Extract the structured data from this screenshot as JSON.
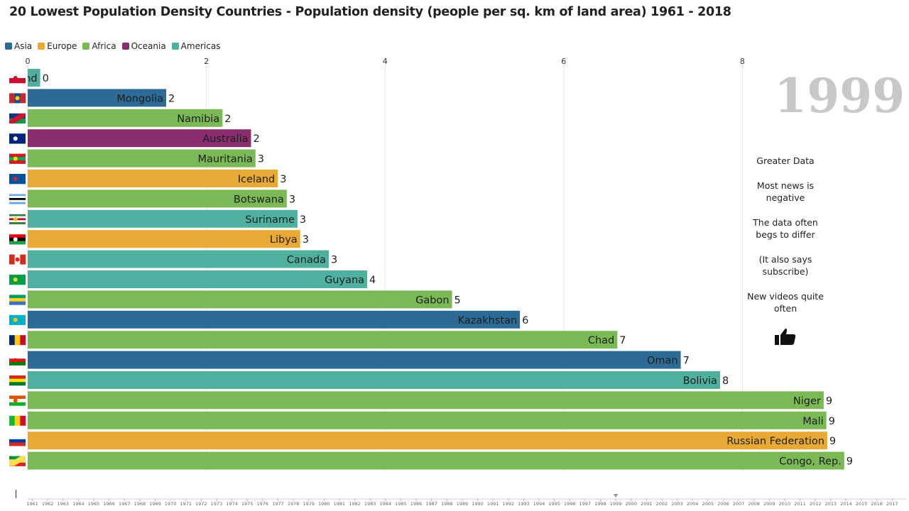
{
  "title": "20 Lowest Population Density Countries - Population density (people per sq. km of land area) 1961 - 2018",
  "year": "1999",
  "legend": [
    {
      "name": "Asia",
      "color": "#2c6b95"
    },
    {
      "name": "Europe",
      "color": "#e8aa34"
    },
    {
      "name": "Africa",
      "color": "#7ab955"
    },
    {
      "name": "Oceania",
      "color": "#8a2d6e"
    },
    {
      "name": "Americas",
      "color": "#4fb0a0"
    }
  ],
  "side_notes": [
    "Greater Data",
    "Most news is negative",
    "The data often begs to differ",
    "(It also says subscribe)",
    "New videos quite often"
  ],
  "timeline_years": [
    "1961",
    "1962",
    "1963",
    "1964",
    "1965",
    "1966",
    "1967",
    "1968",
    "1969",
    "1970",
    "1971",
    "1972",
    "1973",
    "1974",
    "1975",
    "1976",
    "1977",
    "1978",
    "1979",
    "1980",
    "1981",
    "1982",
    "1983",
    "1984",
    "1985",
    "1986",
    "1987",
    "1988",
    "1989",
    "1990",
    "1991",
    "1992",
    "1993",
    "1994",
    "1995",
    "1996",
    "1997",
    "1998",
    "1999",
    "2000",
    "2001",
    "2002",
    "2003",
    "2004",
    "2005",
    "2006",
    "2007",
    "2008",
    "2009",
    "2010",
    "2011",
    "2012",
    "2013",
    "2014",
    "2015",
    "2016",
    "2017"
  ],
  "chart_data": {
    "type": "bar",
    "orientation": "horizontal",
    "title": "20 Lowest Population Density Countries - Population density (people per sq. km of land area) 1961 - 2018",
    "xlim": [
      0,
      9.5
    ],
    "xticks": [
      0,
      2,
      4,
      6,
      8
    ],
    "grid": true,
    "legend_position": "top-left",
    "bars": [
      {
        "label": "Greenland",
        "value": 0.14,
        "value_label": "0",
        "region": "Americas"
      },
      {
        "label": "Mongolia",
        "value": 1.55,
        "value_label": "2",
        "region": "Asia"
      },
      {
        "label": "Namibia",
        "value": 2.18,
        "value_label": "2",
        "region": "Africa"
      },
      {
        "label": "Australia",
        "value": 2.5,
        "value_label": "2",
        "region": "Oceania"
      },
      {
        "label": "Mauritania",
        "value": 2.55,
        "value_label": "3",
        "region": "Africa"
      },
      {
        "label": "Iceland",
        "value": 2.8,
        "value_label": "3",
        "region": "Europe"
      },
      {
        "label": "Botswana",
        "value": 2.9,
        "value_label": "3",
        "region": "Africa"
      },
      {
        "label": "Suriname",
        "value": 3.02,
        "value_label": "3",
        "region": "Americas"
      },
      {
        "label": "Libya",
        "value": 3.05,
        "value_label": "3",
        "region": "Europe"
      },
      {
        "label": "Canada",
        "value": 3.37,
        "value_label": "3",
        "region": "Americas"
      },
      {
        "label": "Guyana",
        "value": 3.8,
        "value_label": "4",
        "region": "Americas"
      },
      {
        "label": "Gabon",
        "value": 4.75,
        "value_label": "5",
        "region": "Africa"
      },
      {
        "label": "Kazakhstan",
        "value": 5.51,
        "value_label": "6",
        "region": "Asia"
      },
      {
        "label": "Chad",
        "value": 6.6,
        "value_label": "7",
        "region": "Africa"
      },
      {
        "label": "Oman",
        "value": 7.31,
        "value_label": "7",
        "region": "Asia"
      },
      {
        "label": "Bolivia",
        "value": 7.75,
        "value_label": "8",
        "region": "Americas"
      },
      {
        "label": "Niger",
        "value": 8.91,
        "value_label": "9",
        "region": "Africa"
      },
      {
        "label": "Mali",
        "value": 8.94,
        "value_label": "9",
        "region": "Africa"
      },
      {
        "label": "Russian Federation",
        "value": 8.95,
        "value_label": "9",
        "region": "Europe"
      },
      {
        "label": "Congo, Rep.",
        "value": 9.14,
        "value_label": "9",
        "region": "Africa"
      }
    ]
  },
  "flags": [
    {
      "icon": "greenland-flag-icon",
      "stripes": [
        "#ffffff",
        "#c8102e"
      ],
      "orient": "h",
      "emblem": "#c8102e"
    },
    {
      "icon": "mongolia-flag-icon",
      "stripes": [
        "#c4272f",
        "#015197",
        "#c4272f"
      ],
      "orient": "v",
      "emblem": "#f9cf02"
    },
    {
      "icon": "namibia-flag-icon",
      "stripes": [
        "#003580",
        "#009a44"
      ],
      "orient": "diag",
      "emblem": "#d21034"
    },
    {
      "icon": "australia-flag-icon",
      "stripes": [
        "#00247d"
      ],
      "orient": "h",
      "emblem": "#ffffff"
    },
    {
      "icon": "mauritania-flag-icon",
      "stripes": [
        "#d01c1f",
        "#00a95c",
        "#d01c1f"
      ],
      "orient": "h3",
      "emblem": "#ffd700"
    },
    {
      "icon": "iceland-flag-icon",
      "stripes": [
        "#02529c"
      ],
      "orient": "h",
      "emblem": "#dc1e35"
    },
    {
      "icon": "botswana-flag-icon",
      "stripes": [
        "#75aadb",
        "#ffffff",
        "#000000",
        "#ffffff",
        "#75aadb"
      ],
      "orient": "h5",
      "emblem": ""
    },
    {
      "icon": "suriname-flag-icon",
      "stripes": [
        "#377e3f",
        "#ffffff",
        "#b40a2d",
        "#ffffff",
        "#377e3f"
      ],
      "orient": "h5",
      "emblem": "#ecc81d"
    },
    {
      "icon": "libya-flag-icon",
      "stripes": [
        "#e70013",
        "#000000",
        "#239e46"
      ],
      "orient": "h",
      "emblem": "#ffffff"
    },
    {
      "icon": "canada-flag-icon",
      "stripes": [
        "#d52b1e",
        "#ffffff",
        "#d52b1e"
      ],
      "orient": "v",
      "emblem": "#d52b1e"
    },
    {
      "icon": "guyana-flag-icon",
      "stripes": [
        "#009e49"
      ],
      "orient": "h",
      "emblem": "#fcd116"
    },
    {
      "icon": "gabon-flag-icon",
      "stripes": [
        "#009e60",
        "#fcd116",
        "#3a75c4"
      ],
      "orient": "h",
      "emblem": ""
    },
    {
      "icon": "kazakhstan-flag-icon",
      "stripes": [
        "#00afca"
      ],
      "orient": "h",
      "emblem": "#fec50c"
    },
    {
      "icon": "chad-flag-icon",
      "stripes": [
        "#002664",
        "#fecb00",
        "#c60c30"
      ],
      "orient": "v",
      "emblem": ""
    },
    {
      "icon": "oman-flag-icon",
      "stripes": [
        "#ffffff",
        "#db161b",
        "#008000"
      ],
      "orient": "h",
      "emblem": "#db161b"
    },
    {
      "icon": "bolivia-flag-icon",
      "stripes": [
        "#d52b1e",
        "#f9e300",
        "#007934"
      ],
      "orient": "h",
      "emblem": ""
    },
    {
      "icon": "niger-flag-icon",
      "stripes": [
        "#e05206",
        "#ffffff",
        "#0db02b"
      ],
      "orient": "h",
      "emblem": "#e05206"
    },
    {
      "icon": "mali-flag-icon",
      "stripes": [
        "#14b53a",
        "#fcd116",
        "#ce1126"
      ],
      "orient": "v",
      "emblem": ""
    },
    {
      "icon": "russia-flag-icon",
      "stripes": [
        "#ffffff",
        "#0039a6",
        "#d52b1e"
      ],
      "orient": "h",
      "emblem": ""
    },
    {
      "icon": "congo-flag-icon",
      "stripes": [
        "#009543",
        "#fbde4a",
        "#dc241f"
      ],
      "orient": "diag3",
      "emblem": ""
    }
  ]
}
